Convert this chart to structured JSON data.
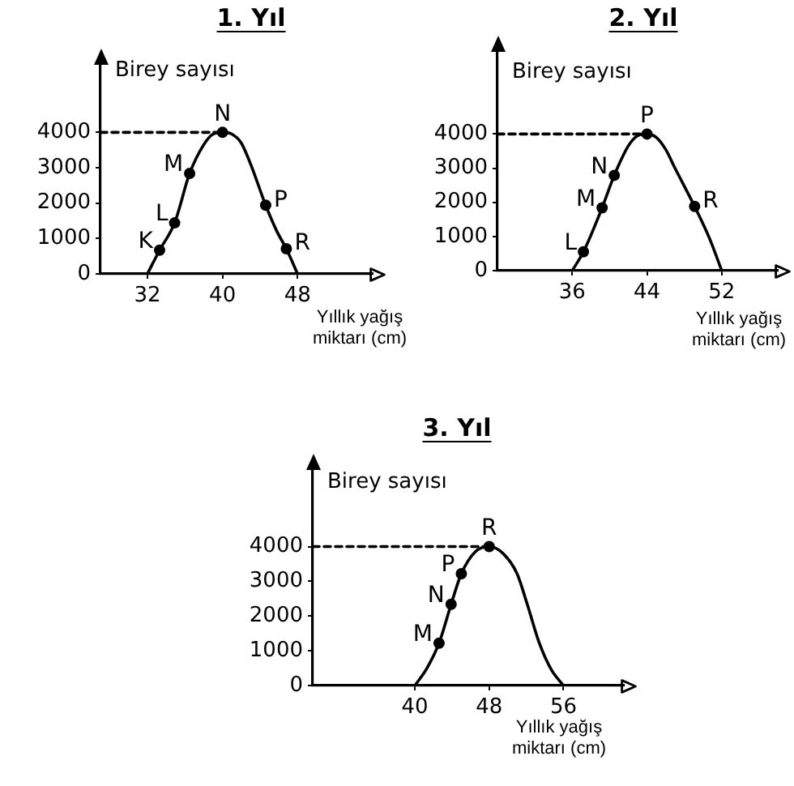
{
  "chart_data": [
    {
      "type": "line",
      "title": "1. Yıl",
      "ylabel": "Birey sayısı",
      "xlabel": "Yıllık yağış miktarı (cm)",
      "xlim": [
        27,
        56
      ],
      "ylim": [
        0,
        6000
      ],
      "xticks": [
        32,
        40,
        48
      ],
      "yticks": [
        0,
        1000,
        2000,
        3000,
        4000
      ],
      "series": [
        {
          "type": "line",
          "color": "#000000",
          "marker": "none",
          "x": [
            32,
            33.3,
            34.9,
            36.5,
            38,
            39,
            40,
            41,
            42,
            43,
            44.6,
            45.8,
            46.8,
            48
          ],
          "values": [
            0,
            670,
            1440,
            2840,
            3650,
            3950,
            4000,
            3950,
            3700,
            3100,
            1940,
            1200,
            710,
            0
          ]
        },
        {
          "type": "scatter",
          "color": "#000000",
          "marker": "circle",
          "x": [
            33.3,
            34.9,
            36.5,
            40,
            44.6,
            46.8
          ],
          "values": [
            670,
            1440,
            2840,
            4000,
            1940,
            710
          ],
          "value_labels": [
            "K",
            "L",
            "M",
            "N",
            "P",
            "R"
          ]
        },
        {
          "type": "line",
          "color": "#000000",
          "marker": "none",
          "line_style": "dashed",
          "x": [
            27,
            40
          ],
          "values": [
            4000,
            4000
          ]
        }
      ]
    },
    {
      "type": "line",
      "title": "2. Yıl",
      "ylabel": "Birey sayısı",
      "xlabel": "Yıllık yağış miktarı (cm)",
      "xlim": [
        28,
        58
      ],
      "ylim": [
        0,
        6500
      ],
      "xticks": [
        36,
        44,
        52
      ],
      "yticks": [
        0,
        1000,
        2000,
        3000,
        4000
      ],
      "series": [
        {
          "type": "line",
          "color": "#000000",
          "marker": "none",
          "x": [
            36,
            37.2,
            39.2,
            40.5,
            42,
            43,
            44,
            45,
            46,
            47,
            49.1,
            50.7,
            52
          ],
          "values": [
            0,
            550,
            1840,
            2790,
            3650,
            3950,
            4000,
            3900,
            3550,
            3000,
            1880,
            940,
            0
          ]
        },
        {
          "type": "scatter",
          "color": "#000000",
          "marker": "circle",
          "x": [
            37.2,
            39.2,
            40.5,
            44,
            49.1
          ],
          "values": [
            550,
            1840,
            2790,
            4000,
            1880
          ],
          "value_labels": [
            "L",
            "M",
            "N",
            "P",
            "R"
          ]
        },
        {
          "type": "line",
          "color": "#000000",
          "marker": "none",
          "line_style": "dashed",
          "x": [
            28,
            44
          ],
          "values": [
            4000,
            4000
          ]
        }
      ]
    },
    {
      "type": "line",
      "title": "3. Yıl",
      "ylabel": "Birey sayısı",
      "xlabel": "Yıllık yağış miktarı (cm)",
      "xlim": [
        29,
        62.5
      ],
      "ylim": [
        0,
        6300
      ],
      "xticks": [
        40,
        48,
        56
      ],
      "yticks": [
        0,
        1000,
        2000,
        3000,
        4000
      ],
      "series": [
        {
          "type": "line",
          "color": "#000000",
          "marker": "none",
          "x": [
            40,
            41.3,
            42.6,
            43.9,
            45,
            46.5,
            48,
            49.5,
            51,
            52.1,
            53.4,
            54.7,
            56
          ],
          "values": [
            0,
            500,
            1220,
            2340,
            3220,
            3850,
            4000,
            3800,
            3220,
            2340,
            1220,
            450,
            0
          ]
        },
        {
          "type": "scatter",
          "color": "#000000",
          "marker": "circle",
          "x": [
            42.6,
            43.9,
            45,
            48
          ],
          "values": [
            1220,
            2340,
            3220,
            4000
          ],
          "value_labels": [
            "M",
            "N",
            "P",
            "R"
          ]
        },
        {
          "type": "line",
          "color": "#000000",
          "marker": "none",
          "line_style": "dashed",
          "x": [
            29,
            48
          ],
          "values": [
            4000,
            4000
          ]
        }
      ]
    }
  ]
}
